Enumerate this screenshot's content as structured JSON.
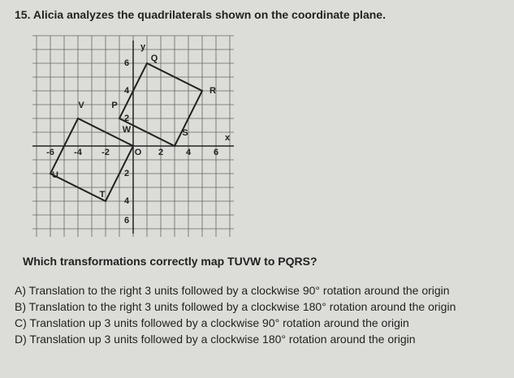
{
  "question": {
    "number": "15.",
    "stem": "Alicia analyzes the quadrilaterals shown on the coordinate plane.",
    "prompt": "Which transformations correctly map TUVW to PQRS?",
    "options": [
      {
        "letter": "A)",
        "text": "Translation to the right 3 units followed by a clockwise 90° rotation around the origin"
      },
      {
        "letter": "B)",
        "text": "Translation to the right 3 units followed by a clockwise 180° rotation around the origin"
      },
      {
        "letter": "C)",
        "text": "Translation up 3 units followed by a clockwise 90° rotation around the origin"
      },
      {
        "letter": "D)",
        "text": "Translation up 3 units followed by a clockwise 180° rotation around the origin"
      }
    ]
  },
  "graph": {
    "x_axis_label": "x",
    "y_axis_label": "y",
    "origin_label": "O",
    "x_tick_labels": [
      "-6",
      "-4",
      "-2",
      "2",
      "4",
      "6"
    ],
    "y_tick_labels": [
      "6",
      "4",
      "2",
      "2",
      "4",
      "6"
    ],
    "point_labels": [
      "P",
      "Q",
      "R",
      "S",
      "T",
      "U",
      "V",
      "W"
    ]
  }
}
